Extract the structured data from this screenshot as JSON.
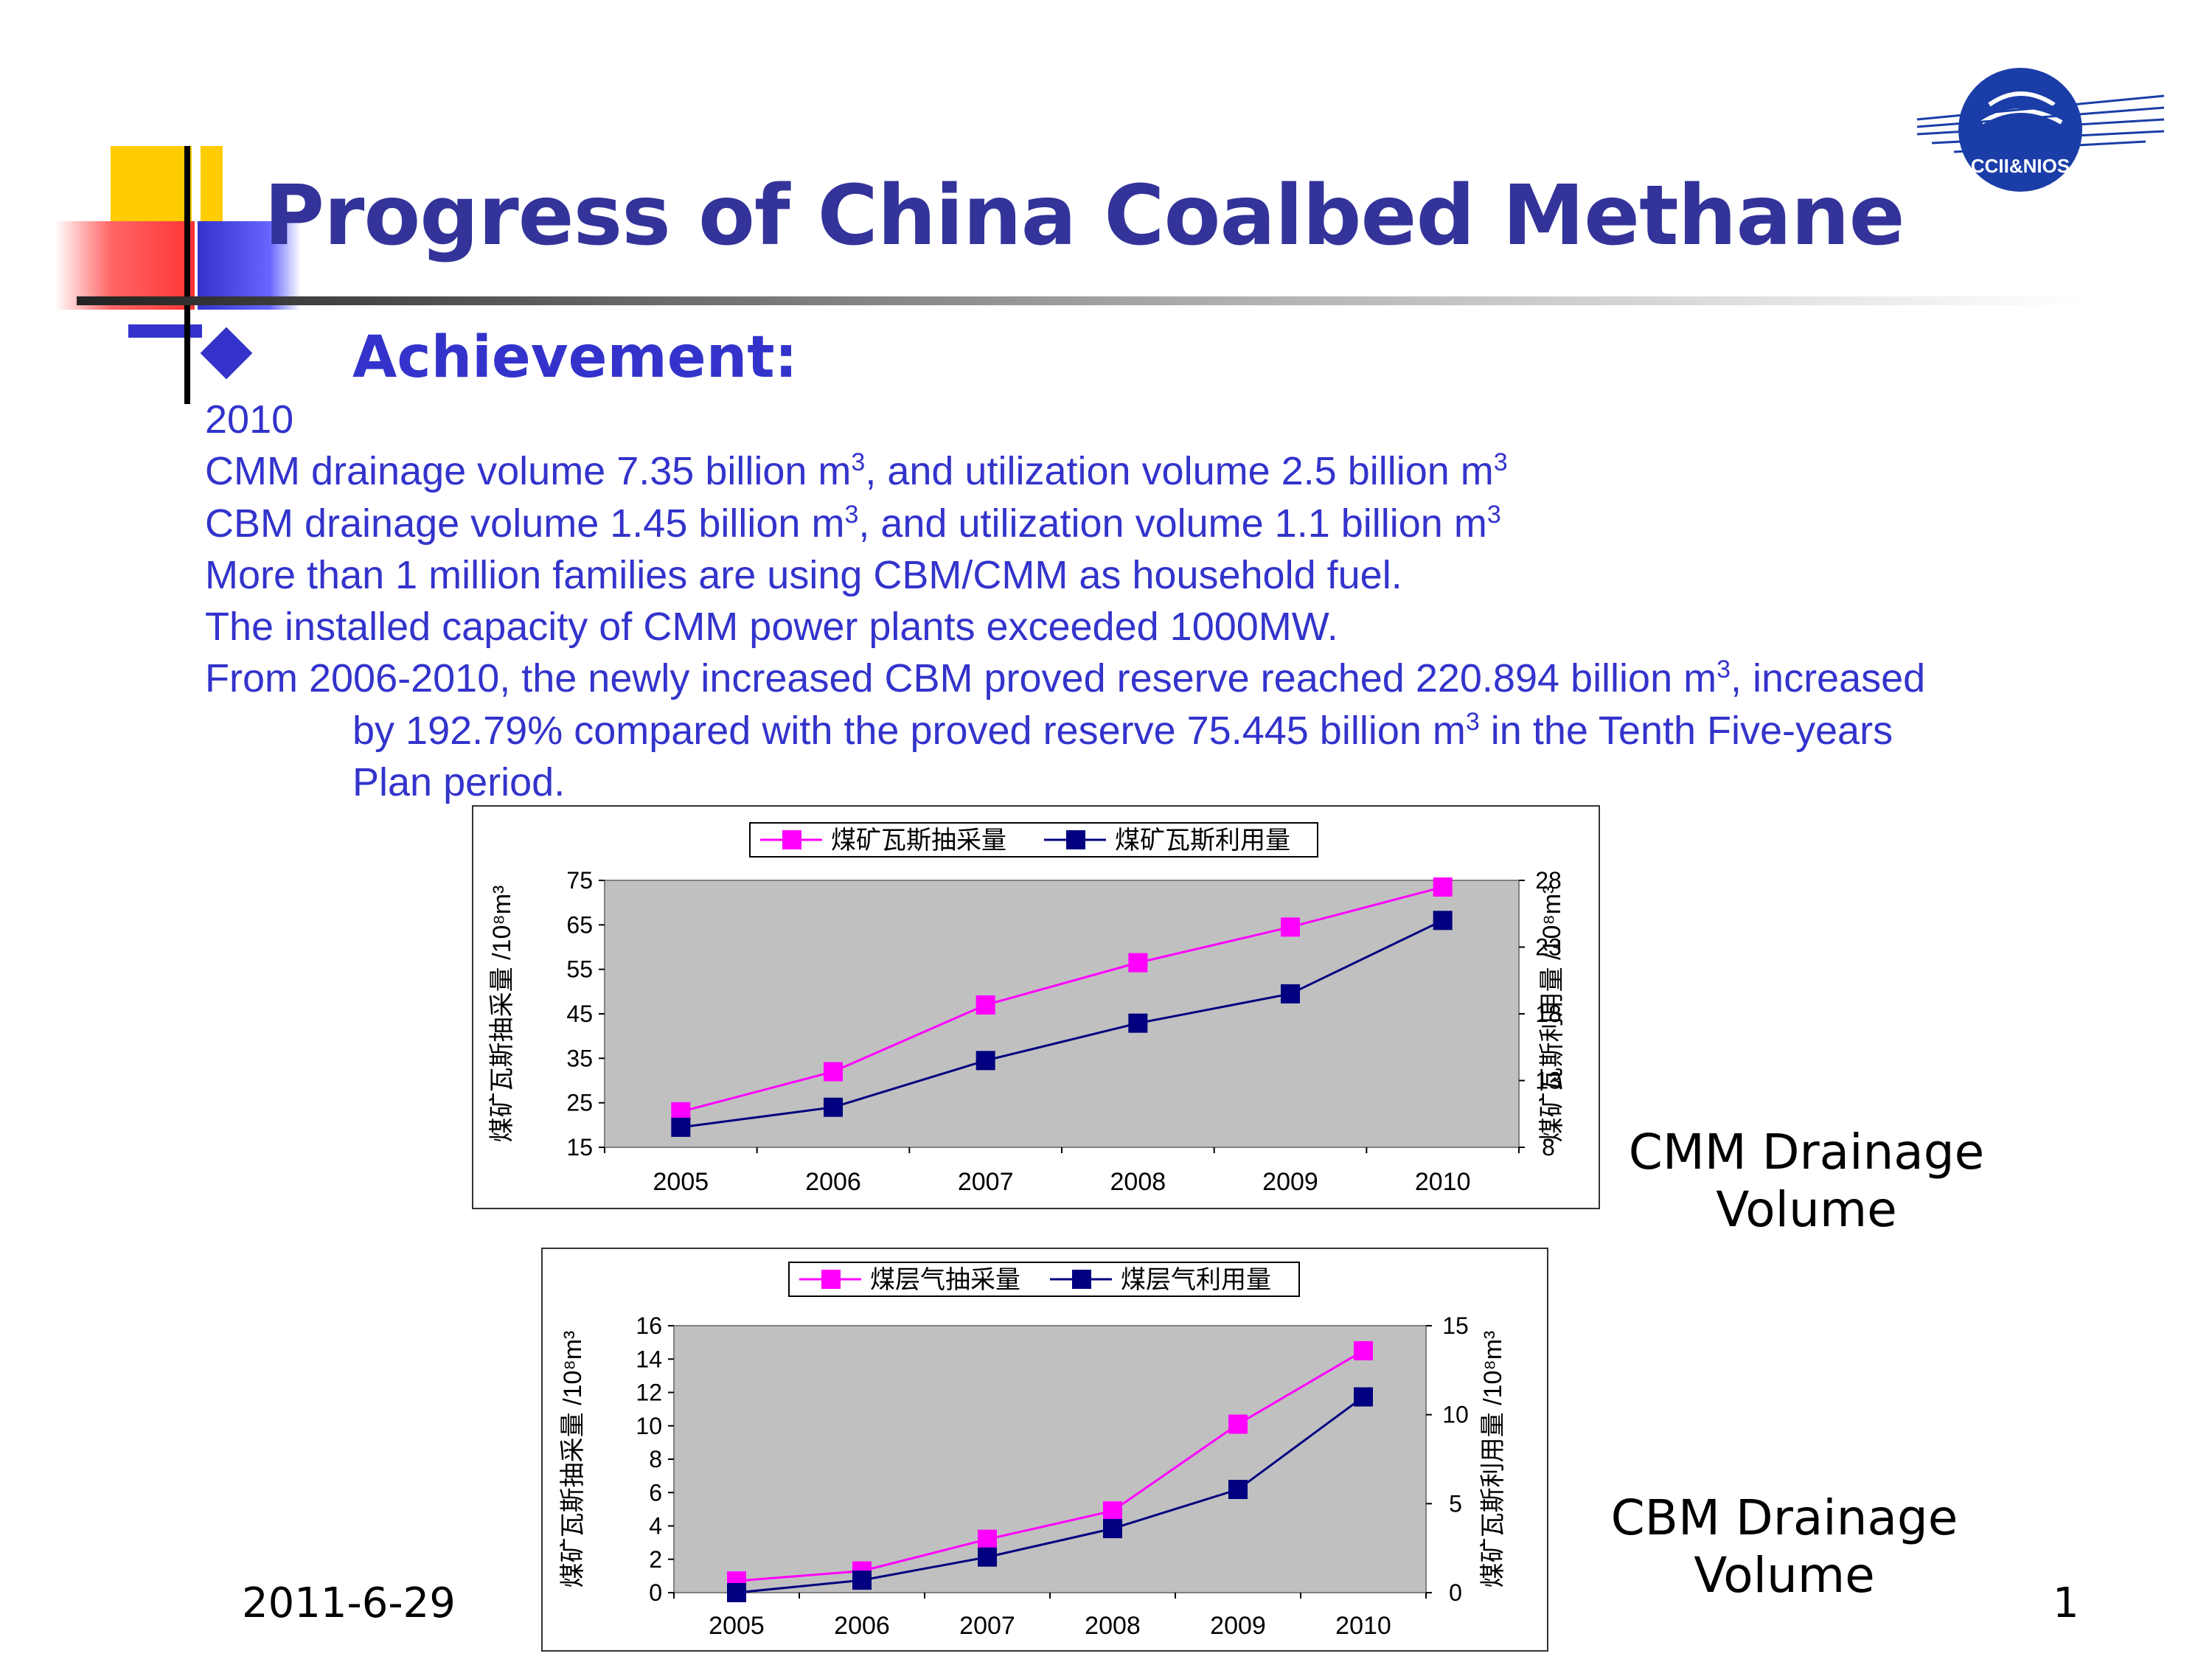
{
  "slide": {
    "title": "Progress of China Coalbed Methane",
    "subheading": "Achievement:",
    "logo_text": "CCII&NIOS",
    "date": "2011-6-29",
    "page_number": "1"
  },
  "body": {
    "year": "2010",
    "line1a": "CMM drainage volume 7.35 billion m",
    "line1b": ", and utilization volume 2.5 billion m",
    "line2a": "CBM drainage volume 1.45 billion m",
    "line2b": ", and utilization volume 1.1 billion m",
    "line3": "More than 1 million families are using CBM/CMM as household fuel.",
    "line4": "The installed capacity of CMM power plants exceeded 1000MW.",
    "line5a": "From 2006-2010, the newly increased CBM proved reserve  reached 220.894 billion m",
    "line5b": ", increased",
    "line6a": "by 192.79% compared with the proved reserve 75.445 billion m",
    "line6b": " in the Tenth  Five-years",
    "line7": "Plan period.",
    "superscript": "3"
  },
  "labels": {
    "cmm_caption_1": "CMM Drainage",
    "cmm_caption_2": "Volume",
    "cbm_caption_1": "CBM Drainage",
    "cbm_caption_2": "Volume"
  },
  "colors": {
    "series_drainage": "#ff00ff",
    "series_utilization": "#000080",
    "plot_background": "#c0c0c0",
    "text_blue": "#3333cc",
    "title_blue": "#33339a"
  },
  "chart_data": [
    {
      "type": "line",
      "categories": [
        "2005",
        "2006",
        "2007",
        "2008",
        "2009",
        "2010"
      ],
      "series": [
        {
          "name": "煤矿瓦斯抽采量",
          "axis": "left",
          "values": [
            23,
            32,
            47,
            56.5,
            64.5,
            73.5
          ]
        },
        {
          "name": "煤矿瓦斯利用量",
          "axis": "right",
          "values": [
            9.5,
            11,
            14.5,
            17.3,
            19.5,
            25
          ]
        }
      ],
      "ylabel": "煤矿瓦斯抽采量 /10⁸m³",
      "y2label": "煤矿瓦斯利用量 /10⁸m³",
      "yticks": [
        "75",
        "65",
        "55",
        "45",
        "35",
        "25",
        "15"
      ],
      "y2ticks": [
        "28",
        "23",
        "18",
        "13",
        "8"
      ],
      "ylim": [
        15,
        75
      ],
      "y2lim": [
        8,
        28
      ],
      "legend": "top",
      "grid": false
    },
    {
      "type": "line",
      "categories": [
        "2005",
        "2006",
        "2007",
        "2008",
        "2009",
        "2010"
      ],
      "series": [
        {
          "name": "煤层气抽采量",
          "axis": "left",
          "values": [
            0.7,
            1.3,
            3.2,
            4.9,
            10.1,
            14.5
          ]
        },
        {
          "name": "煤层气利用量",
          "axis": "right",
          "values": [
            0,
            0.7,
            2,
            3.6,
            5.8,
            11
          ]
        }
      ],
      "ylabel": "煤矿瓦斯抽采量 /10⁸m³",
      "y2label": "煤矿瓦斯利用量 /10⁸m³",
      "yticks": [
        "16",
        "14",
        "12",
        "10",
        "8",
        "6",
        "4",
        "2",
        "0"
      ],
      "y2ticks": [
        "15",
        "10",
        "5",
        "0"
      ],
      "ylim": [
        0,
        16
      ],
      "y2lim": [
        0,
        15
      ],
      "legend": "top",
      "grid": false
    }
  ]
}
